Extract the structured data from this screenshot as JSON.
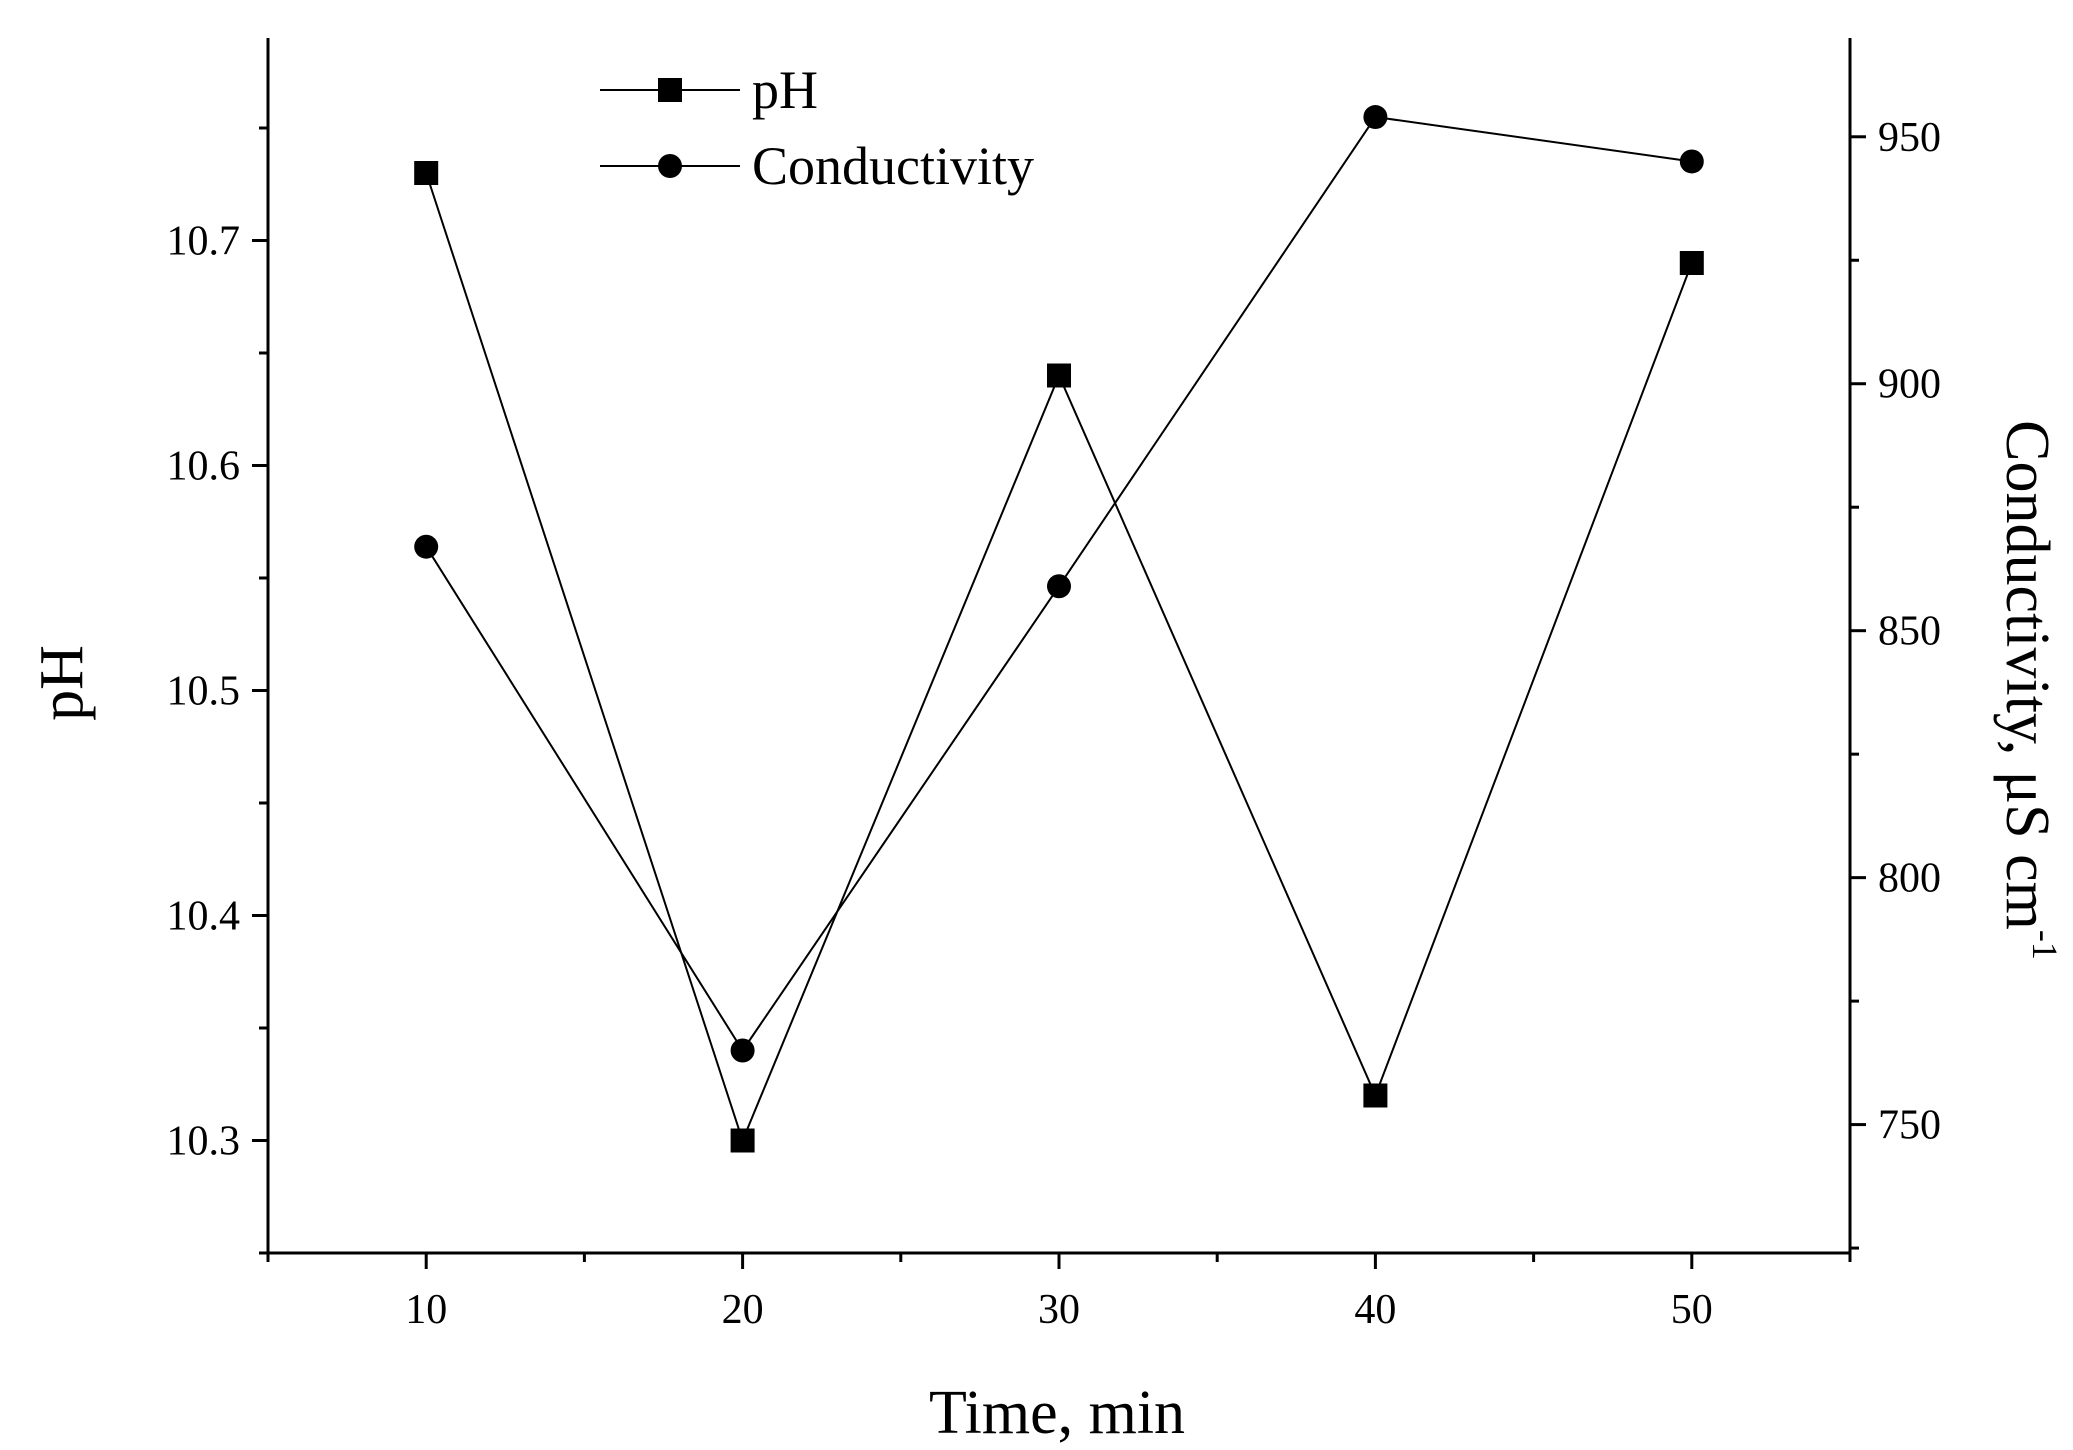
{
  "chart_data": {
    "type": "line",
    "title": "",
    "xlabel": "Time, min",
    "ylabel": "pH",
    "y2label": "Conductivity, μS cm",
    "y2label_superscript": "-1",
    "x": [
      10,
      20,
      30,
      40,
      50
    ],
    "xlim": [
      5,
      55
    ],
    "xticks": [
      10,
      20,
      30,
      40,
      50
    ],
    "ylim": [
      10.25,
      10.79
    ],
    "yticks": [
      10.3,
      10.4,
      10.5,
      10.6,
      10.7
    ],
    "y_tick_labels": [
      "10.3",
      "10.4",
      "10.5",
      "10.6",
      "10.7"
    ],
    "y2lim": [
      724,
      970
    ],
    "y2ticks": [
      750,
      800,
      850,
      900,
      950
    ],
    "grid": false,
    "legend_position": "top-left",
    "series": [
      {
        "name": "pH",
        "axis": "left",
        "marker": "square",
        "color": "#000000",
        "values": [
          10.73,
          10.3,
          10.64,
          10.32,
          10.69
        ]
      },
      {
        "name": "Conductivity",
        "axis": "right",
        "marker": "circle",
        "color": "#000000",
        "values": [
          867,
          765,
          859,
          954,
          945
        ]
      }
    ]
  }
}
